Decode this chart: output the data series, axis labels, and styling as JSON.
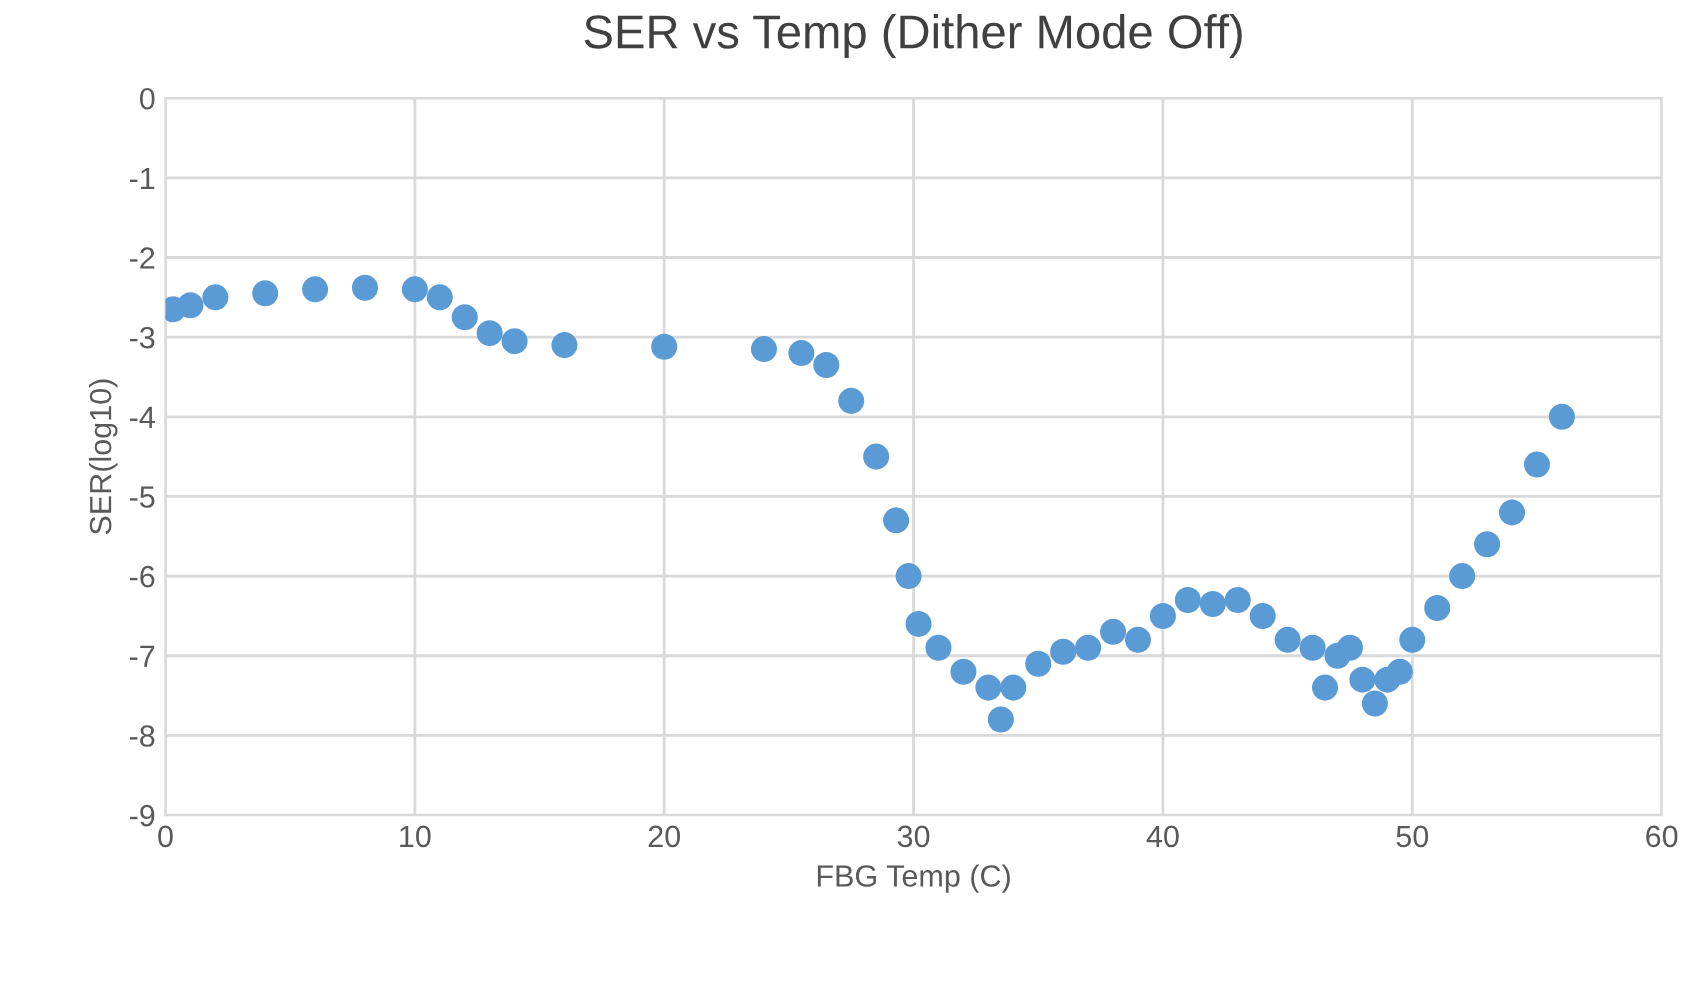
{
  "chart_data": {
    "type": "scatter",
    "title": "SER vs Temp (Dither Mode Off)",
    "xlabel": "FBG Temp (C)",
    "ylabel": "SER(log10)",
    "xlim": [
      0,
      60
    ],
    "xticks": [
      0,
      10,
      20,
      30,
      40,
      50,
      60
    ],
    "ylim": [
      -9,
      0
    ],
    "yticks": [
      -9,
      -8,
      -7,
      -6,
      -5,
      -4,
      -3,
      -2,
      -1,
      0
    ],
    "grid": true,
    "marker": "circle",
    "series": [
      {
        "color": "#5b9bd5",
        "x": [
          0.3,
          1,
          2,
          4,
          6,
          8,
          10,
          11,
          12,
          13,
          14,
          16,
          20,
          24,
          25.5,
          26.5,
          27.5,
          28.5,
          29.3,
          29.8,
          30.2,
          31,
          32,
          33,
          33.5,
          34,
          35,
          36,
          37,
          38,
          39,
          40,
          41,
          42,
          43,
          44,
          45,
          46,
          46.5,
          47,
          47.5,
          48,
          48.5,
          49,
          49.5,
          50,
          51,
          52,
          53,
          54,
          55,
          56
        ],
        "values": [
          -2.65,
          -2.6,
          -2.5,
          -2.45,
          -2.4,
          -2.38,
          -2.4,
          -2.5,
          -2.75,
          -2.95,
          -3.05,
          -3.1,
          -3.12,
          -3.15,
          -3.2,
          -3.35,
          -3.8,
          -4.5,
          -5.3,
          -6.0,
          -6.6,
          -6.9,
          -7.2,
          -7.4,
          -7.8,
          -7.4,
          -7.1,
          -6.95,
          -6.9,
          -6.7,
          -6.8,
          -6.5,
          -6.3,
          -6.35,
          -6.3,
          -6.5,
          -6.8,
          -6.9,
          -7.4,
          -7.0,
          -6.9,
          -7.3,
          -7.6,
          -7.3,
          -7.2,
          -6.8,
          -6.4,
          -6.0,
          -5.6,
          -5.2,
          -4.6,
          -4.0
        ]
      }
    ]
  }
}
